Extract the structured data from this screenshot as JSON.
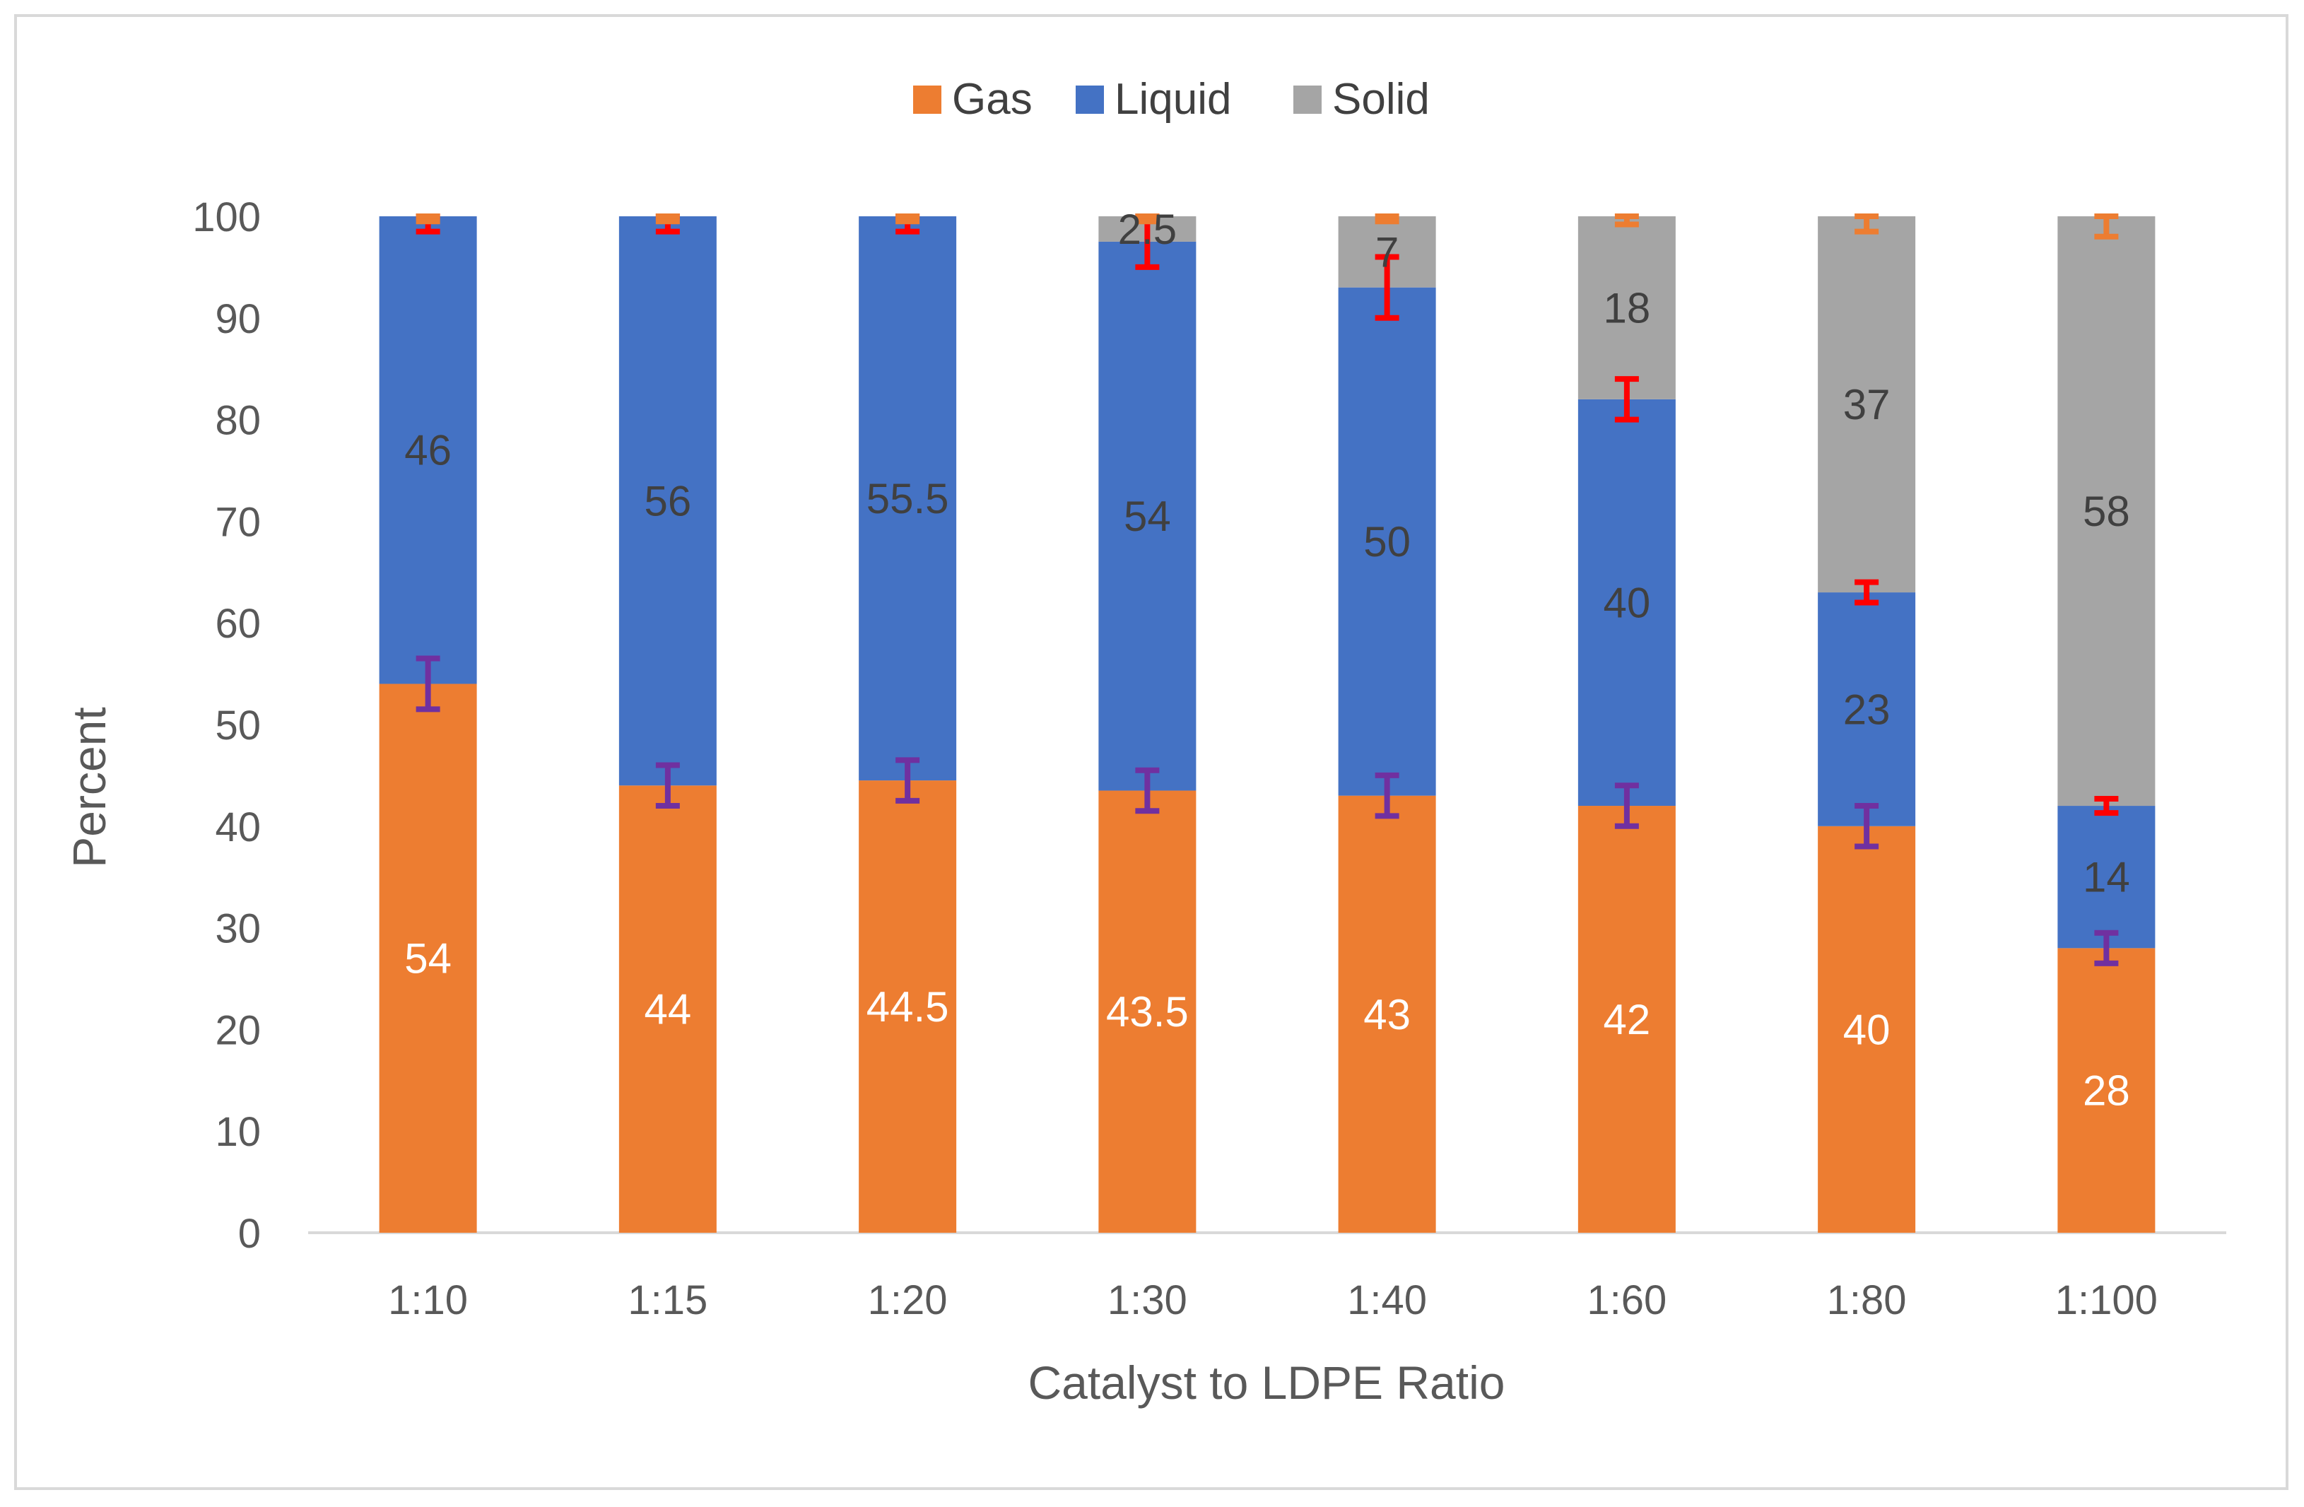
{
  "chart_data": {
    "type": "bar",
    "stacked": true,
    "title": "",
    "xlabel": "Catalyst to LDPE Ratio",
    "ylabel": "Percent",
    "ylim": [
      0,
      100
    ],
    "ytick_step": 10,
    "yticks": [
      "0",
      "10",
      "20",
      "30",
      "40",
      "50",
      "60",
      "70",
      "80",
      "90",
      "100"
    ],
    "grid": false,
    "legend_position": "top-center",
    "categories": [
      "1:10",
      "1:15",
      "1:20",
      "1:30",
      "1:40",
      "1:60",
      "1:80",
      "1:100"
    ],
    "series": [
      {
        "name": "Gas",
        "color": "#ed7d31",
        "label_color": "#ffffff",
        "values": [
          54,
          44,
          44.5,
          43.5,
          43,
          42,
          40,
          28
        ],
        "labels": [
          "54",
          "44",
          "44.5",
          "43.5",
          "43",
          "42",
          "40",
          "28"
        ],
        "error": [
          2.5,
          2,
          2,
          2,
          2,
          2,
          2,
          1.5
        ],
        "error_color": "#7030a0"
      },
      {
        "name": "Liquid",
        "color": "#4472c4",
        "label_color": "#404040",
        "values": [
          46,
          56,
          55.5,
          54,
          50,
          40,
          23,
          14
        ],
        "labels": [
          "46",
          "56",
          "55.5",
          "54",
          "50",
          "40",
          "23",
          "14"
        ],
        "error": [
          1.5,
          1.5,
          1.5,
          2.5,
          3,
          2,
          1,
          0.7
        ],
        "error_color": "#ff0000"
      },
      {
        "name": "Solid",
        "color": "#a5a5a5",
        "label_color": "#404040",
        "values": [
          0,
          0,
          0,
          2.5,
          7,
          18,
          37,
          58
        ],
        "labels": [
          "",
          "",
          "",
          "2.5",
          "7",
          "18",
          "37",
          "58"
        ],
        "error": [
          0.5,
          0.5,
          0.5,
          0.5,
          0.5,
          0.8,
          1.5,
          2
        ],
        "error_color": "#ed7d31"
      }
    ]
  }
}
